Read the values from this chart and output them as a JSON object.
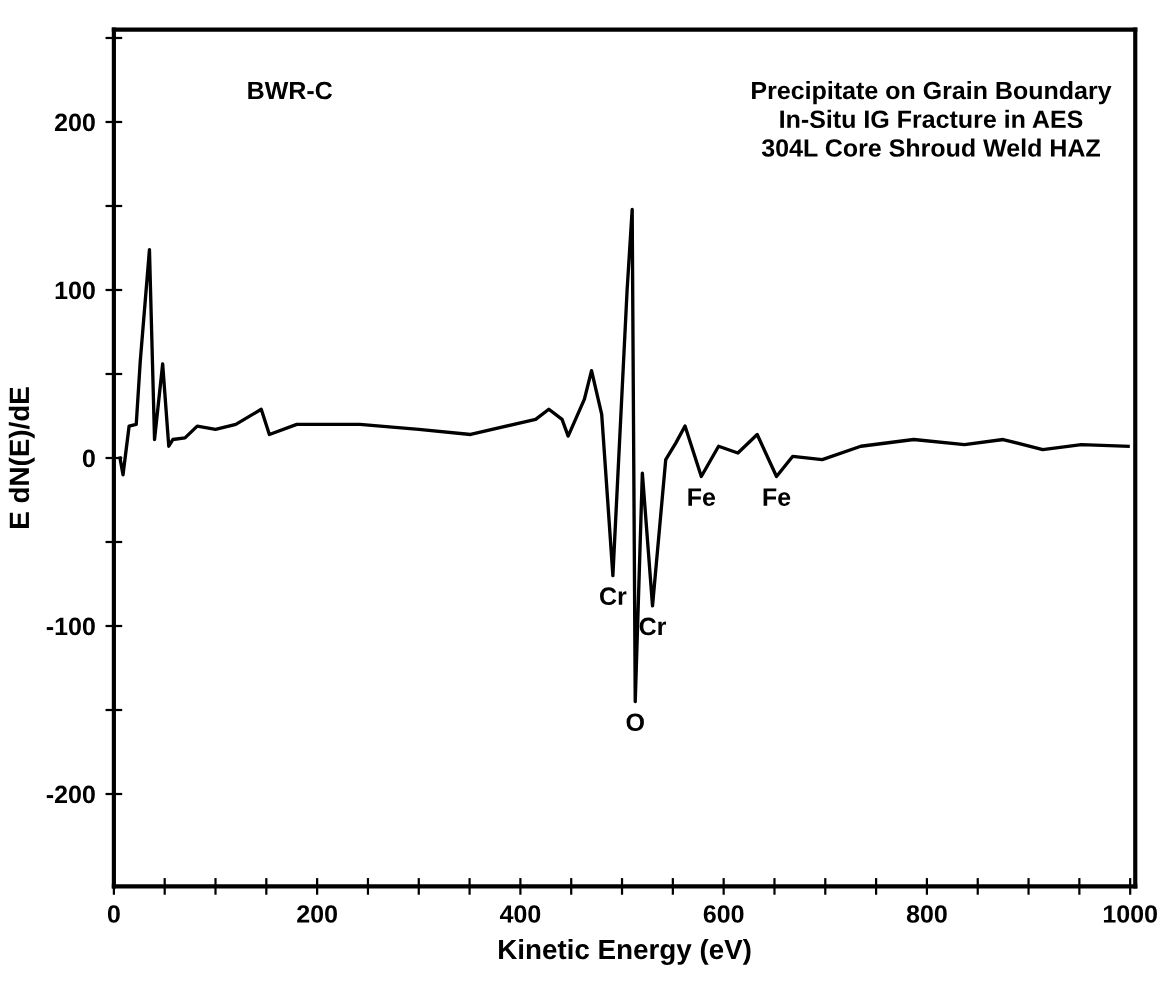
{
  "chart_data": {
    "type": "line",
    "xlabel": "Kinetic Energy (eV)",
    "ylabel": "E dN(E)/dE",
    "x": [
      6,
      9,
      15,
      22,
      26,
      35,
      40,
      48,
      54,
      58,
      70,
      82,
      100,
      120,
      145,
      153,
      180,
      242,
      300,
      351,
      415,
      428,
      441,
      447,
      463,
      470,
      480,
      491,
      505,
      510,
      513,
      520,
      530,
      543,
      553,
      562,
      578,
      595,
      614,
      633,
      652,
      668,
      697,
      735,
      787,
      837,
      875,
      914,
      952,
      998
    ],
    "series": [
      {
        "color": "#000000",
        "values": [
          0,
          -10,
          19,
          20,
          58,
          124,
          11,
          56,
          7,
          11,
          12,
          19,
          17,
          20,
          29,
          14,
          20,
          20,
          17,
          14,
          23,
          29,
          23,
          13,
          35,
          52,
          26,
          -70,
          100,
          148,
          -145,
          -9,
          -88,
          -1,
          9,
          19,
          -11,
          7,
          3,
          14,
          -11,
          1,
          -1,
          7,
          11,
          8,
          11,
          5,
          8,
          7
        ]
      }
    ],
    "xlim": [
      0,
      1005
    ],
    "ylim": [
      -255,
      255
    ],
    "xticks": [
      0,
      {
        "value": 50,
        "label": null
      },
      {
        "value": 100,
        "label": null
      },
      {
        "value": 150,
        "label": null
      },
      200,
      {
        "value": 250,
        "label": null
      },
      {
        "value": 300,
        "label": null
      },
      {
        "value": 350,
        "label": null
      },
      400,
      {
        "value": 450,
        "label": null
      },
      {
        "value": 500,
        "label": null
      },
      {
        "value": 550,
        "label": null
      },
      600,
      {
        "value": 650,
        "label": null
      },
      {
        "value": 700,
        "label": null
      },
      {
        "value": 750,
        "label": null
      },
      800,
      {
        "value": 850,
        "label": null
      },
      {
        "value": 900,
        "label": null
      },
      {
        "value": 950,
        "label": null
      },
      1000
    ],
    "yticks": [
      -200,
      {
        "value": -150,
        "label": null
      },
      -100,
      {
        "value": -50,
        "label": null
      },
      0,
      {
        "value": 50,
        "label": null
      },
      100,
      {
        "value": 150,
        "label": null
      },
      200,
      {
        "value": 250,
        "label": null
      }
    ],
    "grid": false,
    "legend": false,
    "marker": "none",
    "line_style": "solid",
    "annotations": [
      "BWR-C",
      "Precipitate on Grain Boundary\nIn-Situ IG Fracture in AES\n304L Core Shroud Weld HAZ",
      {
        "text": "Cr",
        "x": 491,
        "y": -70
      },
      {
        "text": "Cr",
        "x": 530,
        "y": -88
      },
      {
        "text": "O",
        "x": 513,
        "y": -145
      },
      {
        "text": "Fe",
        "x": 578,
        "y": -11
      },
      {
        "text": "Fe",
        "x": 652,
        "y": -11
      }
    ]
  }
}
